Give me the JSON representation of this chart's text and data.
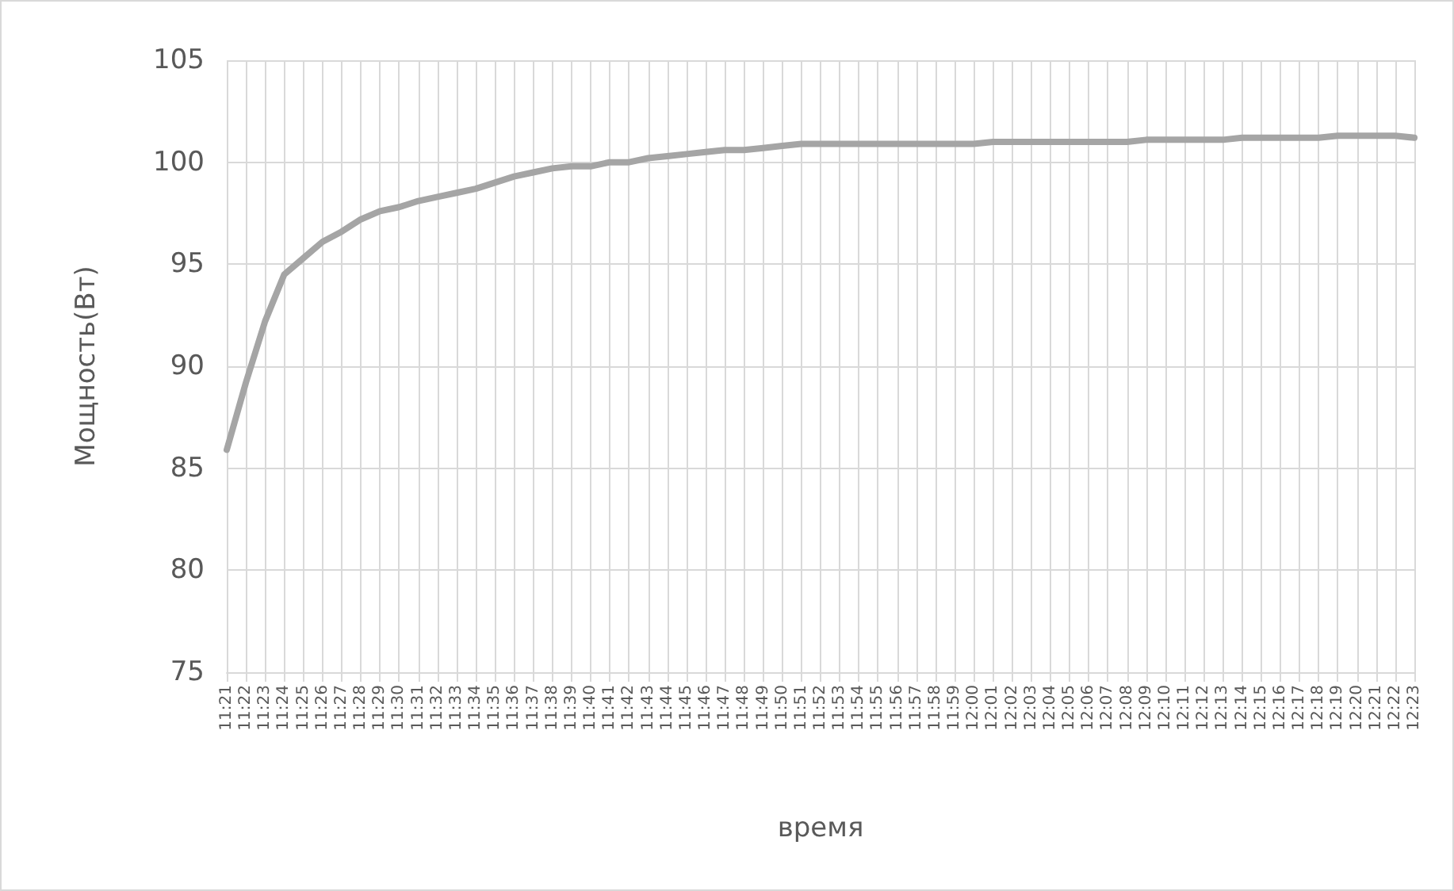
{
  "chart_data": {
    "type": "line",
    "xlabel": "время",
    "ylabel": "Мощность(Вт)",
    "categories": [
      "11:21",
      "11:22",
      "11:23",
      "11:24",
      "11:25",
      "11:26",
      "11:27",
      "11:28",
      "11:29",
      "11:30",
      "11:31",
      "11:32",
      "11:33",
      "11:34",
      "11:35",
      "11:36",
      "11:37",
      "11:38",
      "11:39",
      "11:40",
      "11:41",
      "11:42",
      "11:43",
      "11:44",
      "11:45",
      "11:46",
      "11:47",
      "11:48",
      "11:49",
      "11:50",
      "11:51",
      "11:52",
      "11:53",
      "11:54",
      "11:55",
      "11:56",
      "11:57",
      "11:58",
      "11:59",
      "12:00",
      "12:01",
      "12:02",
      "12:03",
      "12:04",
      "12:05",
      "12:06",
      "12:07",
      "12:08",
      "12:09",
      "12:10",
      "12:11",
      "12:12",
      "12:13",
      "12:14",
      "12:15",
      "12:16",
      "12:17",
      "12:18",
      "12:19",
      "12:20",
      "12:21",
      "12:22",
      "12:23"
    ],
    "series": [
      {
        "color": "#a5a5a5",
        "values": [
          85.9,
          89.2,
          92.2,
          94.5,
          95.3,
          96.1,
          96.6,
          97.2,
          97.6,
          97.8,
          98.1,
          98.3,
          98.5,
          98.7,
          99.0,
          99.3,
          99.5,
          99.7,
          99.8,
          99.8,
          100.0,
          100.0,
          100.2,
          100.3,
          100.4,
          100.5,
          100.6,
          100.6,
          100.7,
          100.8,
          100.9,
          100.9,
          100.9,
          100.9,
          100.9,
          100.9,
          100.9,
          100.9,
          100.9,
          100.9,
          101.0,
          101.0,
          101.0,
          101.0,
          101.0,
          101.0,
          101.0,
          101.0,
          101.1,
          101.1,
          101.1,
          101.1,
          101.1,
          101.2,
          101.2,
          101.2,
          101.2,
          101.2,
          101.3,
          101.3,
          101.3,
          101.3,
          101.2
        ]
      }
    ],
    "ylim": [
      75,
      105
    ],
    "yticks": [
      75,
      80,
      85,
      90,
      95,
      100,
      105
    ],
    "grid": true,
    "marker": "none",
    "line_style": "solid"
  }
}
